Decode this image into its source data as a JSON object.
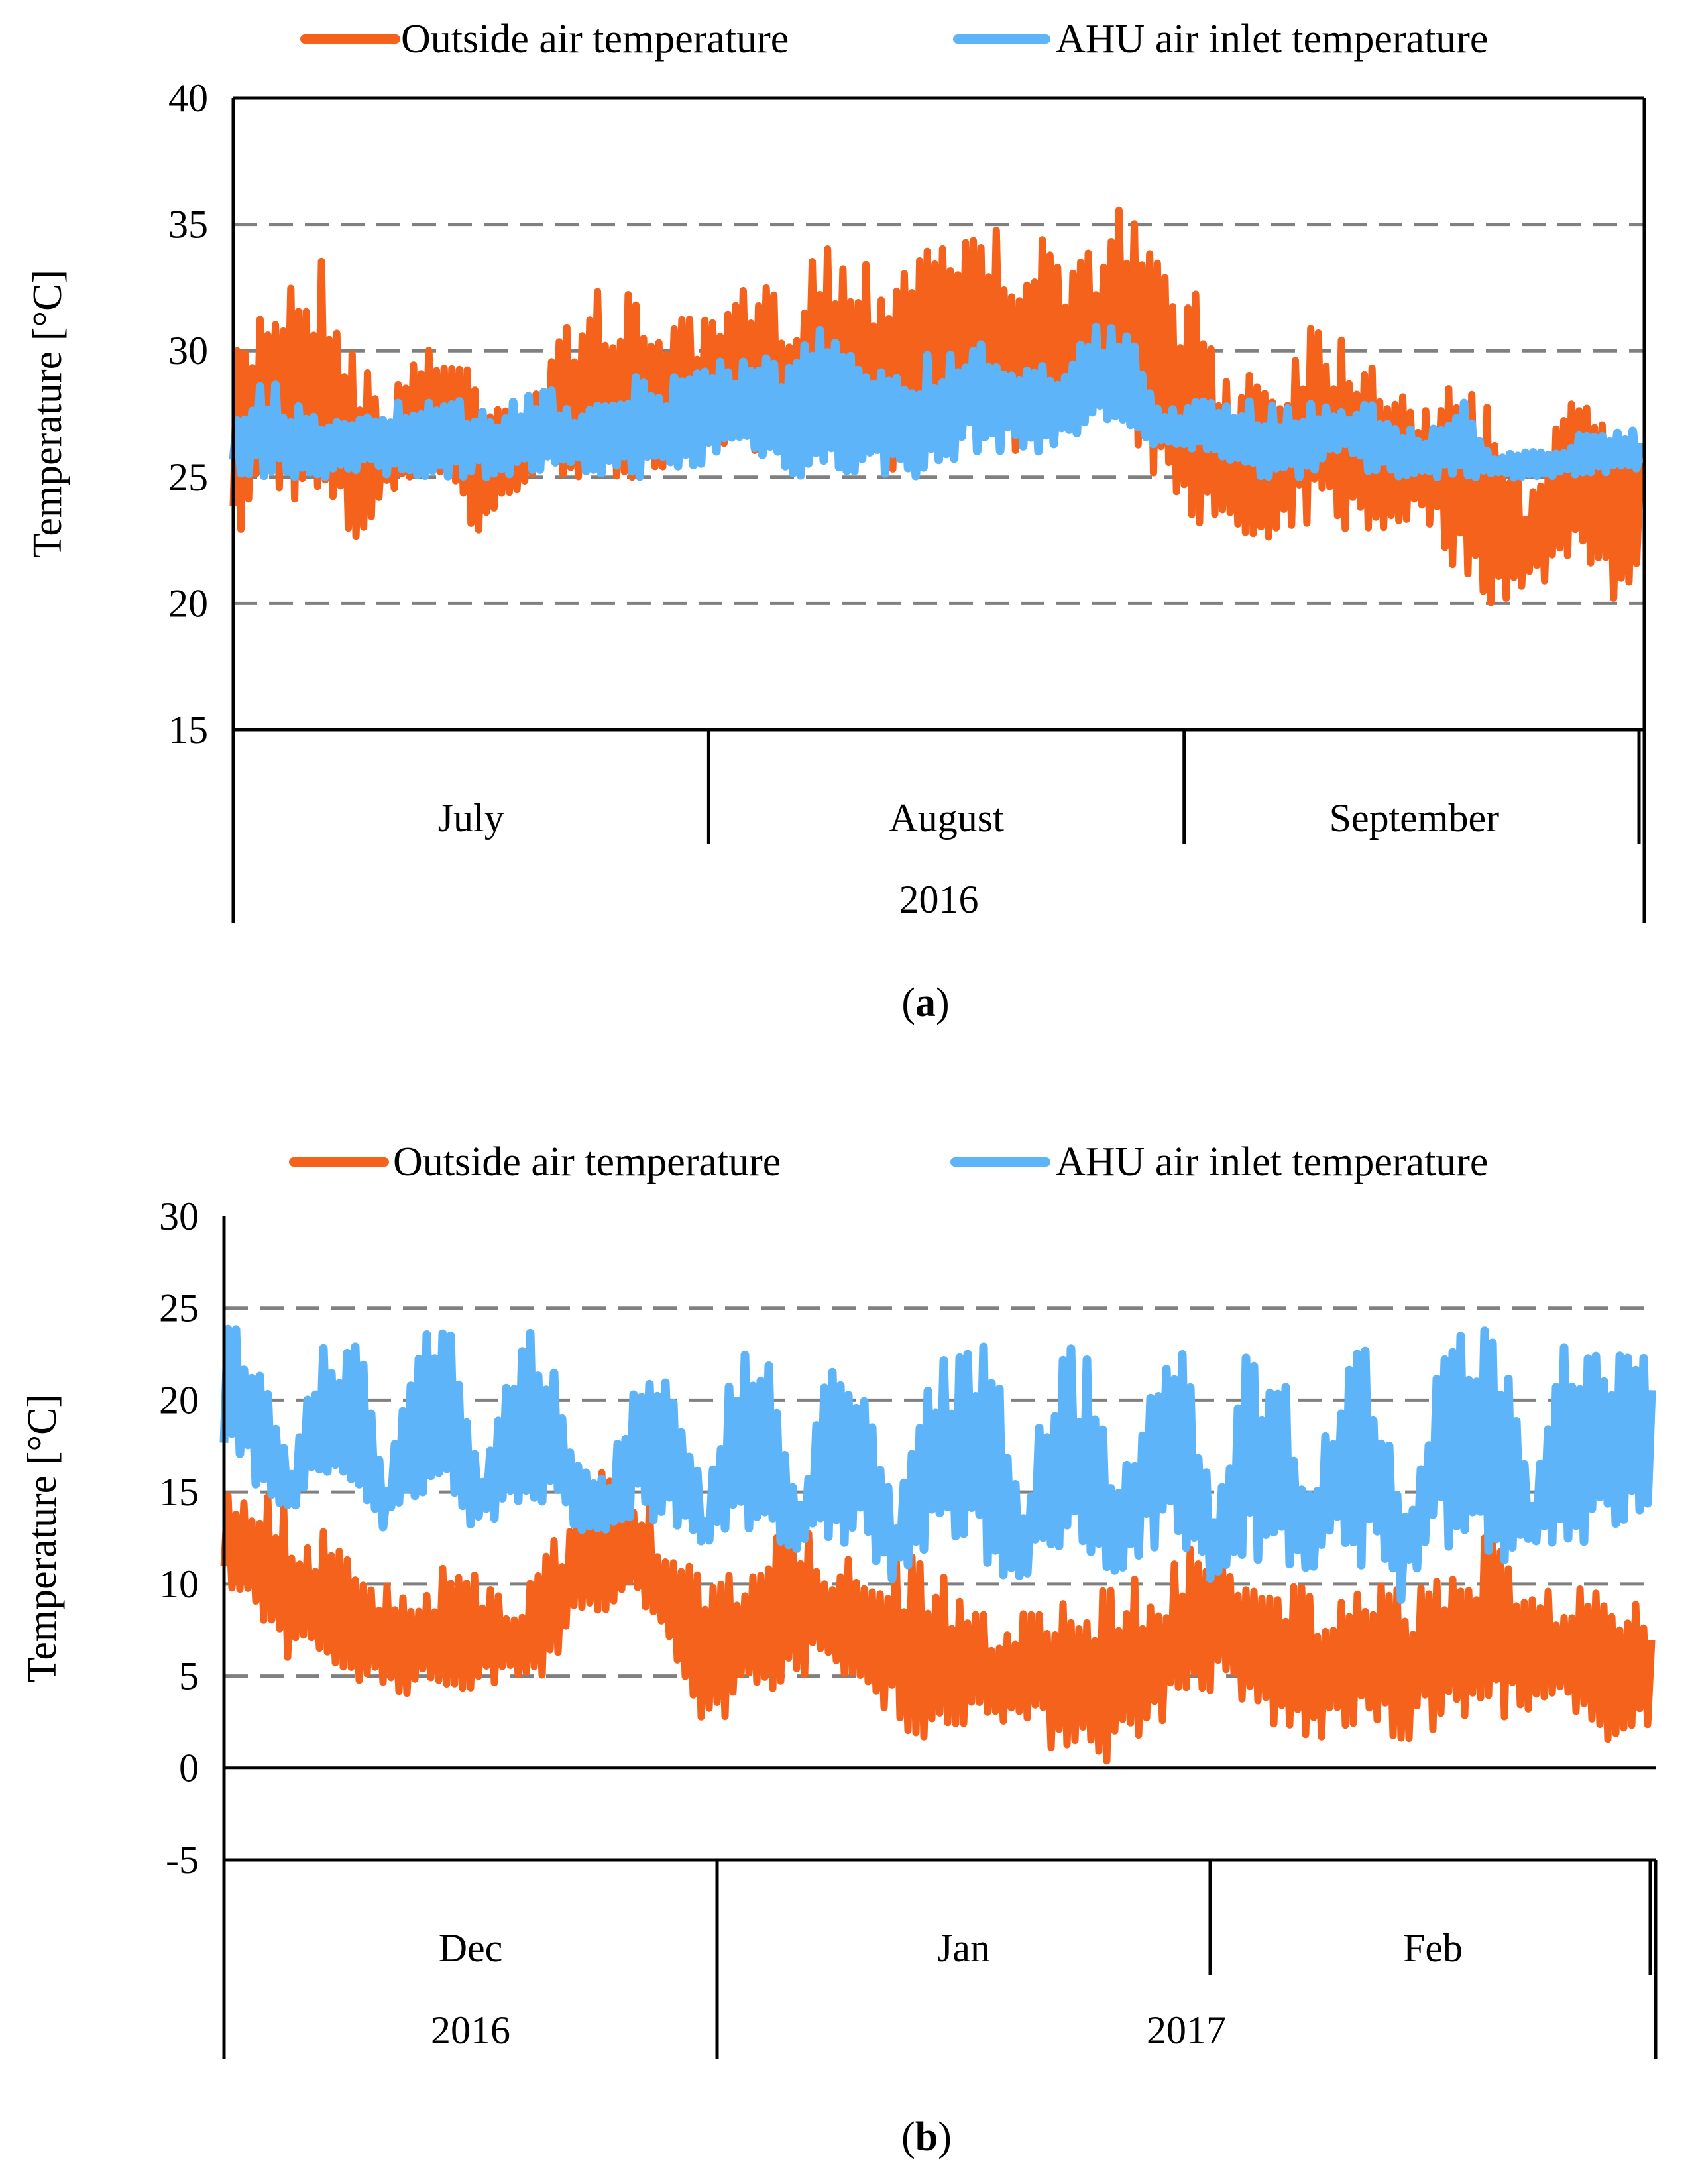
{
  "colors": {
    "outside": "#F4621C",
    "ahu": "#5EB4F9",
    "grid": "#808080",
    "axis": "#000000"
  },
  "chart_data": [
    {
      "type": "line",
      "caption_letter": "a",
      "ylabel": "Temperature [°C]",
      "ylim": [
        15,
        40
      ],
      "yticks": [
        15,
        20,
        25,
        30,
        35,
        40
      ],
      "gridlines": [
        20,
        25,
        30,
        35
      ],
      "categories": [
        "July",
        "August",
        "September"
      ],
      "category_days": [
        31,
        31,
        30
      ],
      "year_groups": [
        {
          "label": "2016",
          "span": 3
        }
      ],
      "legend": [
        "Outside air temperature",
        "AHU air inlet temperature"
      ],
      "legend_placement": "top",
      "sample_step_days": 2,
      "series": [
        {
          "name": "Outside air temperature",
          "high": [
            30,
            33,
            34,
            34,
            30,
            28,
            31,
            30,
            30,
            28,
            29,
            32,
            33,
            32,
            32,
            31,
            32,
            33,
            32,
            35,
            34,
            34,
            35,
            36,
            35,
            35,
            35,
            33,
            35,
            36,
            34,
            33,
            30,
            30,
            30,
            32,
            31,
            31,
            29,
            28,
            29,
            28,
            25,
            27,
            30,
            28
          ],
          "low": [
            22,
            24,
            24,
            23,
            22,
            24,
            25,
            25,
            22,
            24,
            25,
            25,
            24,
            25,
            25,
            25,
            26,
            26,
            26,
            26,
            26,
            25,
            25,
            26,
            26,
            26,
            26,
            27,
            27,
            27,
            25,
            24,
            22,
            22,
            21,
            23,
            23,
            22,
            23,
            23,
            21,
            20,
            20,
            21,
            22,
            20
          ]
        },
        {
          "name": "AHU air inlet temperature",
          "high": [
            28,
            29,
            28,
            27,
            28,
            28,
            28,
            28,
            28,
            28,
            29,
            28,
            29,
            29,
            29,
            30,
            30,
            30,
            30,
            31,
            30,
            30,
            30,
            30,
            31,
            30,
            30,
            30,
            31,
            31,
            28,
            28,
            28,
            28,
            28,
            28,
            28,
            28,
            27,
            27,
            28,
            26,
            26,
            26,
            27,
            27
          ],
          "low": [
            25,
            25,
            25,
            25,
            25,
            25,
            25,
            25,
            25,
            25,
            25,
            25,
            25,
            25,
            25,
            25,
            26,
            26,
            25,
            25,
            25,
            25,
            25,
            25,
            26,
            26,
            26,
            26,
            27,
            27,
            26,
            26,
            26,
            25,
            25,
            25,
            26,
            25,
            25,
            25,
            25,
            25,
            25,
            25,
            25,
            25
          ]
        }
      ]
    },
    {
      "type": "line",
      "caption_letter": "b",
      "ylabel": "Temperature [°C]",
      "ylim": [
        -5,
        30
      ],
      "yticks": [
        -5,
        0,
        5,
        10,
        15,
        20,
        25,
        30
      ],
      "gridlines": [
        5,
        10,
        15,
        20,
        25
      ],
      "categories": [
        "Dec",
        "Jan",
        "Feb"
      ],
      "category_days": [
        31,
        31,
        28
      ],
      "year_groups": [
        {
          "label": "2016",
          "span": 1
        },
        {
          "label": "2017",
          "span": 2
        }
      ],
      "legend": [
        "Outside air temperature",
        "AHU air inlet temperature"
      ],
      "legend_placement": "top",
      "sample_step_days": 2,
      "series": [
        {
          "name": "Outside air temperature",
          "high": [
            16,
            15,
            14,
            13,
            11,
            10,
            9,
            12,
            10,
            9,
            12,
            15,
            17,
            15,
            12,
            10,
            11,
            14,
            13,
            12,
            11,
            12,
            11,
            10,
            8,
            9,
            10,
            9,
            11,
            10,
            12,
            13,
            12,
            11,
            10,
            9,
            10,
            10,
            11,
            12,
            13,
            11,
            10,
            10,
            9
          ],
          "low": [
            10,
            8,
            6,
            5,
            5,
            4,
            4,
            4,
            4,
            5,
            5,
            7,
            8,
            9,
            6,
            2,
            3,
            4,
            5,
            5,
            4,
            3,
            0,
            2,
            3,
            2,
            1,
            1,
            0,
            2,
            3,
            4,
            3,
            2,
            1,
            2,
            2,
            1,
            2,
            2,
            3,
            2,
            3,
            1,
            2
          ]
        },
        {
          "name": "AHU air inlet temperature",
          "high": [
            24,
            24,
            17,
            24,
            24,
            16,
            24,
            24,
            16,
            24,
            24,
            17,
            16,
            23,
            23,
            14,
            23,
            23,
            15,
            23,
            23,
            14,
            23,
            23,
            23,
            14,
            23,
            23,
            15,
            23,
            23,
            14,
            23,
            23,
            15,
            23,
            23,
            14,
            23,
            24,
            24,
            15,
            23,
            23,
            23
          ],
          "low": [
            17,
            15,
            14,
            15,
            15,
            13,
            14,
            14,
            13,
            14,
            14,
            13,
            12,
            13,
            13,
            12,
            13,
            13,
            11,
            12,
            12,
            10,
            11,
            12,
            11,
            10,
            11,
            11,
            10,
            12,
            12,
            10,
            11,
            11,
            10,
            11,
            11,
            9,
            12,
            12,
            11,
            12,
            12,
            12,
            13
          ]
        }
      ]
    }
  ]
}
